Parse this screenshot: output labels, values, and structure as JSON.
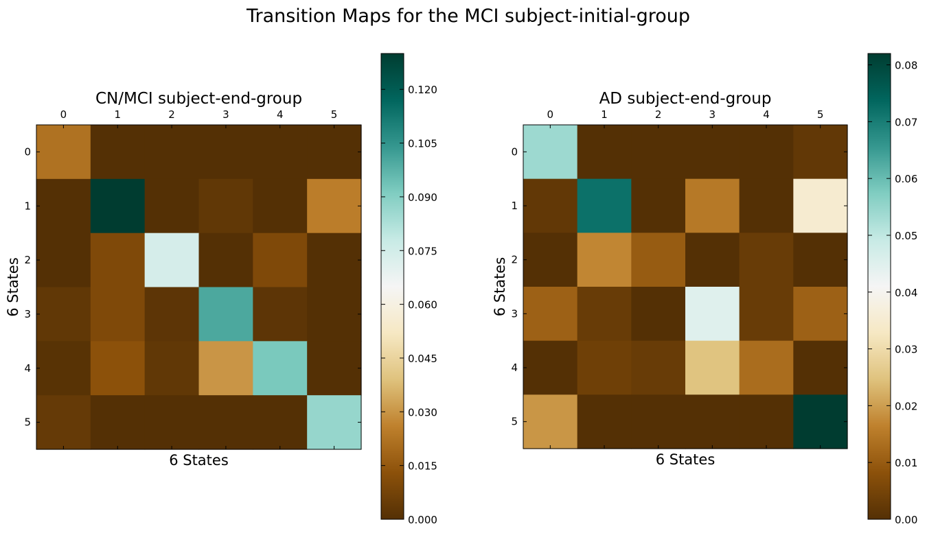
{
  "figure": {
    "suptitle": "Transition Maps for the MCI subject-initial-group"
  },
  "chart_data": [
    {
      "type": "heatmap",
      "title": "CN/MCI subject-end-group",
      "xlabel": "6 States",
      "ylabel": "6 States",
      "x_tick_labels": [
        "0",
        "1",
        "2",
        "3",
        "4",
        "5"
      ],
      "y_tick_labels": [
        "0",
        "1",
        "2",
        "3",
        "4",
        "5"
      ],
      "x_axis_position": "top",
      "values": [
        [
          0.022,
          0.0,
          0.0,
          0.0,
          0.0,
          0.0
        ],
        [
          0.0,
          0.13,
          0.0,
          0.003,
          0.0,
          0.025
        ],
        [
          0.0,
          0.01,
          0.074,
          0.0,
          0.01,
          0.0
        ],
        [
          0.003,
          0.01,
          0.002,
          0.1,
          0.002,
          0.0
        ],
        [
          0.001,
          0.013,
          0.003,
          0.03,
          0.092,
          0.0
        ],
        [
          0.004,
          0.0,
          0.0,
          0.0,
          0.0,
          0.087
        ]
      ],
      "colorbar": {
        "range": [
          0.0,
          0.13
        ],
        "tick_values": [
          0.0,
          0.015,
          0.03,
          0.045,
          0.06,
          0.075,
          0.09,
          0.105,
          0.12
        ],
        "tick_labels": [
          "0.000",
          "0.015",
          "0.030",
          "0.045",
          "0.060",
          "0.075",
          "0.090",
          "0.105",
          "0.120"
        ]
      },
      "colormap": "BrBG",
      "grid": false
    },
    {
      "type": "heatmap",
      "title": "AD subject-end-group",
      "xlabel": "6 States",
      "ylabel": "6 States",
      "x_tick_labels": [
        "0",
        "1",
        "2",
        "3",
        "4",
        "5"
      ],
      "y_tick_labels": [
        "0",
        "1",
        "2",
        "3",
        "4",
        "5"
      ],
      "x_axis_position": "top",
      "values": [
        [
          0.054,
          0.0,
          0.0,
          0.0,
          0.0,
          0.002
        ],
        [
          0.002,
          0.072,
          0.0,
          0.015,
          0.0,
          0.035
        ],
        [
          0.0,
          0.017,
          0.01,
          0.0,
          0.003,
          0.0
        ],
        [
          0.011,
          0.003,
          0.0,
          0.045,
          0.003,
          0.011
        ],
        [
          0.0,
          0.004,
          0.003,
          0.025,
          0.013,
          0.0
        ],
        [
          0.019,
          0.0,
          0.0,
          0.0,
          0.0,
          0.082
        ]
      ],
      "colorbar": {
        "range": [
          0.0,
          0.082
        ],
        "tick_values": [
          0.0,
          0.01,
          0.02,
          0.03,
          0.04,
          0.05,
          0.06,
          0.07,
          0.08
        ],
        "tick_labels": [
          "0.00",
          "0.01",
          "0.02",
          "0.03",
          "0.04",
          "0.05",
          "0.06",
          "0.07",
          "0.08"
        ]
      },
      "colormap": "BrBG",
      "grid": false
    }
  ]
}
